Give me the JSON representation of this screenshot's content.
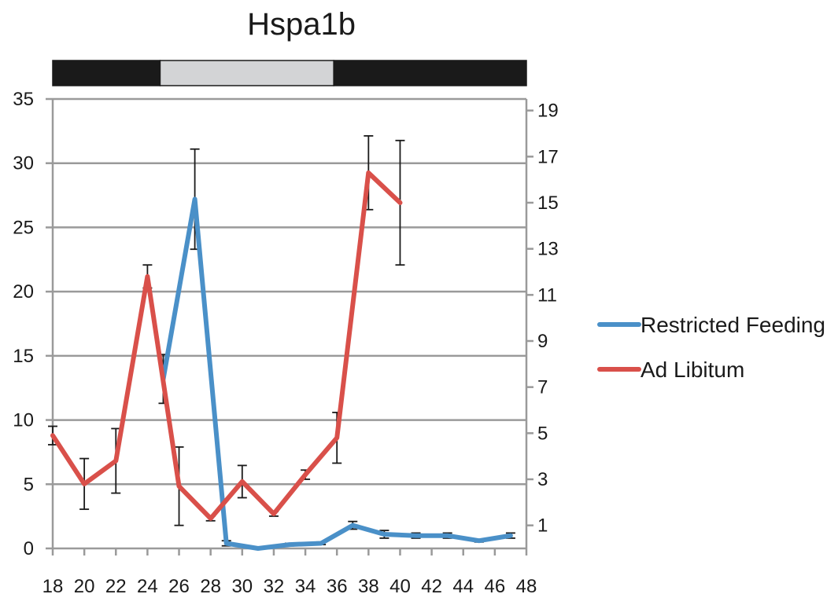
{
  "chart_data": {
    "type": "line",
    "title": "Hspa1b",
    "x_ticks": [
      18,
      20,
      22,
      24,
      26,
      28,
      30,
      32,
      34,
      36,
      38,
      40,
      42,
      44,
      46,
      48
    ],
    "xlim": [
      18,
      48
    ],
    "y_left": {
      "lim": [
        0,
        35
      ],
      "ticks": [
        0,
        5,
        10,
        15,
        20,
        25,
        30,
        35
      ]
    },
    "y_right": {
      "lim": [
        0,
        19.5
      ],
      "ticks": [
        1,
        3,
        5,
        7,
        9,
        11,
        13,
        15,
        17,
        19
      ]
    },
    "grid": true,
    "legend_position": "right",
    "light_dark_bar": [
      {
        "from": 18,
        "to": 24.8,
        "phase": "dark"
      },
      {
        "from": 24.8,
        "to": 35.8,
        "phase": "light"
      },
      {
        "from": 35.8,
        "to": 48,
        "phase": "dark"
      }
    ],
    "series": [
      {
        "name": "Restricted Feeding",
        "color": "#4a90c8",
        "axis": "left",
        "x": [
          25,
          27,
          29,
          31,
          33,
          35,
          37,
          39,
          41,
          43,
          45,
          47
        ],
        "y": [
          13.2,
          27.2,
          0.4,
          0.0,
          0.3,
          0.4,
          1.8,
          1.1,
          1.0,
          1.0,
          0.6,
          1.0
        ],
        "err": [
          1.9,
          3.9,
          0.2,
          0.1,
          0.1,
          0.1,
          0.3,
          0.3,
          0.2,
          0.2,
          0.1,
          0.2
        ]
      },
      {
        "name": "Ad Libitum",
        "color": "#d9504a",
        "axis": "right",
        "x": [
          18,
          20,
          22,
          24,
          26,
          28,
          30,
          32,
          34,
          36,
          38,
          40
        ],
        "y": [
          4.9,
          2.8,
          3.8,
          11.8,
          2.7,
          1.3,
          2.9,
          1.5,
          3.2,
          4.8,
          16.3,
          15.0
        ],
        "err": [
          0.4,
          1.1,
          1.4,
          0.5,
          1.7,
          0.1,
          0.7,
          0.1,
          0.2,
          1.1,
          1.6,
          2.7
        ]
      }
    ]
  }
}
